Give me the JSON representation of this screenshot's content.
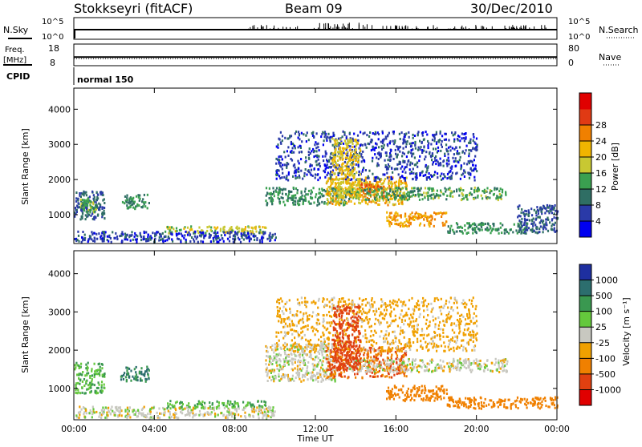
{
  "header": {
    "station": "Stokkseyri (fitACF)",
    "beam": "Beam 09",
    "date": "30/Dec/2010"
  },
  "panels": {
    "nsky": {
      "label": "N.Sky",
      "right_label": "N.Search",
      "left_ticks": [
        "10^5",
        "10^0"
      ],
      "right_ticks": [
        "10^5",
        "10^0"
      ]
    },
    "freq": {
      "label_top": "Freq.",
      "label_bottom": "[MHz]",
      "right_label": "Nave",
      "left_ticks": [
        "18",
        "8"
      ],
      "right_ticks": [
        "80",
        "0"
      ],
      "freq_value_mhz": 12,
      "nave_value": 26
    },
    "cpid": {
      "label": "CPID",
      "mode": "normal 150"
    }
  },
  "axes": {
    "ylabel": "Slant Range [km]",
    "xlabel": "Time UT",
    "yticks": [
      "1000",
      "2000",
      "3000",
      "4000"
    ],
    "yrange_km": [
      180,
      4600
    ],
    "xticks": [
      "00:00",
      "04:00",
      "08:00",
      "12:00",
      "16:00",
      "20:00",
      "00:00"
    ],
    "xrange_hours": [
      0,
      24
    ]
  },
  "colorbars": {
    "power": {
      "label": "Power [dB]",
      "ticks": [
        "4",
        "8",
        "12",
        "16",
        "20",
        "24",
        "28"
      ],
      "colors": [
        "#0000f0",
        "#2a3aa8",
        "#2f6e64",
        "#3aa050",
        "#c8c832",
        "#f0b400",
        "#f08000",
        "#e03a14",
        "#e00000"
      ]
    },
    "velocity": {
      "label": "Velocity [m s⁻¹]",
      "ticks": [
        "1000",
        "500",
        "100",
        "25",
        "-25",
        "-100",
        "-500",
        "-1000"
      ],
      "colors": [
        "#1e2fa0",
        "#2c6e6e",
        "#3a9850",
        "#64c83c",
        "#c8c8c0",
        "#f0a000",
        "#f08000",
        "#e04010",
        "#e00000"
      ]
    }
  },
  "chart_data": {
    "type": "heatmap",
    "series": [
      {
        "name": "Power",
        "unit": "dB",
        "blobs": [
          {
            "t": [
              0.0,
              1.5
            ],
            "r": [
              900,
              1700
            ],
            "v": 8
          },
          {
            "t": [
              0.3,
              1.1
            ],
            "r": [
              1100,
              1500
            ],
            "v": 14
          },
          {
            "t": [
              2.3,
              3.7
            ],
            "r": [
              1200,
              1600
            ],
            "v": 12
          },
          {
            "t": [
              4.5,
              9.5
            ],
            "r": [
              500,
              700
            ],
            "v": 18
          },
          {
            "t": [
              0.0,
              10.0
            ],
            "r": [
              250,
              550
            ],
            "v": 6
          },
          {
            "t": [
              9.5,
              13.5
            ],
            "r": [
              1300,
              1800
            ],
            "v": 12
          },
          {
            "t": [
              12.5,
              16.5
            ],
            "r": [
              1300,
              2100
            ],
            "v": 22
          },
          {
            "t": [
              14.2,
              15.4
            ],
            "r": [
              1500,
              1900
            ],
            "v": 28
          },
          {
            "t": [
              13.5,
              21.5
            ],
            "r": [
              1450,
              1800
            ],
            "v": 14
          },
          {
            "t": [
              15.5,
              18.5
            ],
            "r": [
              700,
              1100
            ],
            "v": 24
          },
          {
            "t": [
              18.5,
              22.5
            ],
            "r": [
              500,
              800
            ],
            "v": 12
          },
          {
            "t": [
              22.0,
              24.0
            ],
            "r": [
              500,
              1300
            ],
            "v": 8
          },
          {
            "t": [
              10.0,
              20.0
            ],
            "r": [
              2000,
              3400
            ],
            "v": 6
          },
          {
            "t": [
              12.8,
              14.2
            ],
            "r": [
              1500,
              3200
            ],
            "v": 20
          }
        ]
      },
      {
        "name": "Velocity",
        "unit": "m s-1",
        "blobs": [
          {
            "t": [
              0.0,
              1.5
            ],
            "r": [
              900,
              1700
            ],
            "v": 100
          },
          {
            "t": [
              2.3,
              3.7
            ],
            "r": [
              1200,
              1600
            ],
            "v": 500
          },
          {
            "t": [
              4.5,
              9.5
            ],
            "r": [
              500,
              700
            ],
            "v": 100
          },
          {
            "t": [
              0.0,
              10.0
            ],
            "r": [
              250,
              550
            ],
            "v": 0
          },
          {
            "t": [
              9.5,
              13.0
            ],
            "r": [
              1200,
              2200
            ],
            "v": 0
          },
          {
            "t": [
              12.5,
              16.5
            ],
            "r": [
              1300,
              2100
            ],
            "v": -500
          },
          {
            "t": [
              13.5,
              21.5
            ],
            "r": [
              1450,
              1800
            ],
            "v": 0
          },
          {
            "t": [
              15.5,
              18.5
            ],
            "r": [
              700,
              1100
            ],
            "v": -300
          },
          {
            "t": [
              18.5,
              24.0
            ],
            "r": [
              500,
              800
            ],
            "v": -300
          },
          {
            "t": [
              10.0,
              20.0
            ],
            "r": [
              2000,
              3400
            ],
            "v": -50
          },
          {
            "t": [
              12.8,
              14.2
            ],
            "r": [
              1500,
              3200
            ],
            "v": -800
          }
        ]
      }
    ]
  }
}
